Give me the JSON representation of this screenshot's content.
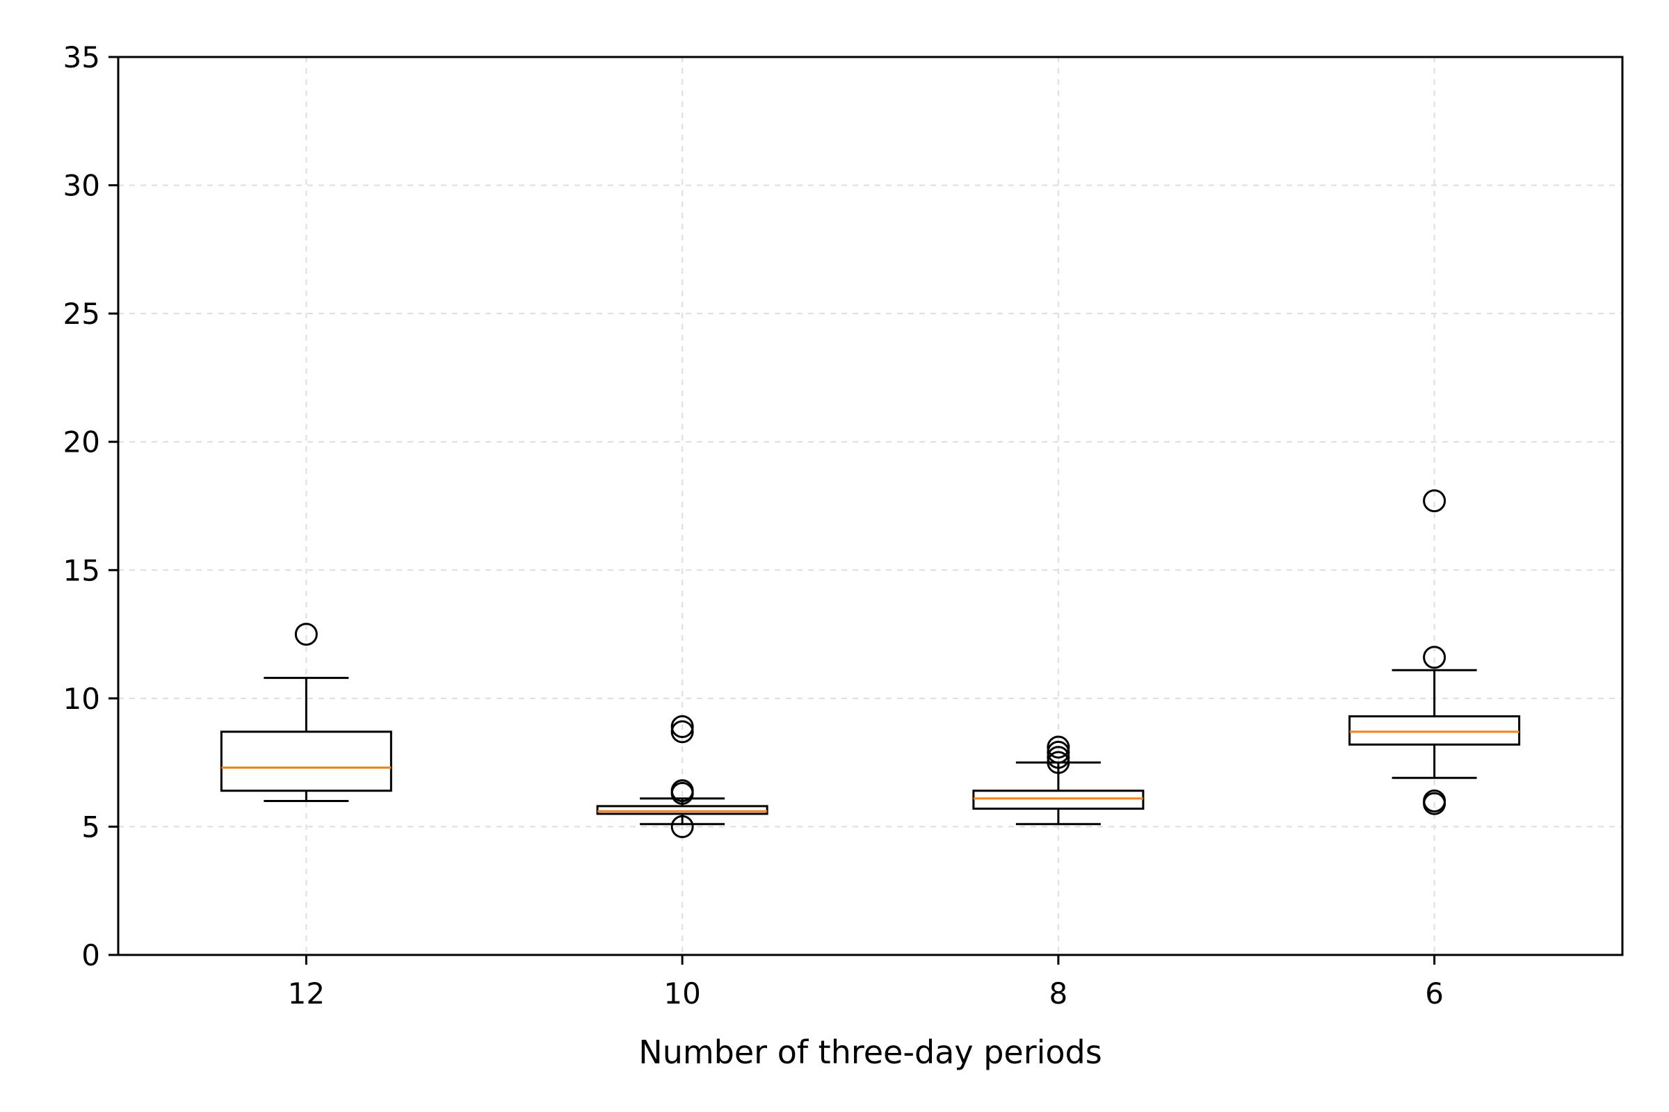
{
  "chart_data": {
    "type": "box",
    "title": "",
    "xlabel": "Number of three-day periods",
    "ylabel": "",
    "ylim": [
      0,
      35
    ],
    "yticks": [
      0,
      5,
      10,
      15,
      20,
      25,
      30,
      35
    ],
    "grid": true,
    "categories": [
      "12",
      "10",
      "8",
      "6"
    ],
    "boxes": [
      {
        "category": "12",
        "whisker_low": 6.0,
        "q1": 6.4,
        "median": 7.3,
        "q3": 8.7,
        "whisker_high": 10.8,
        "outliers": [
          12.5
        ]
      },
      {
        "category": "10",
        "whisker_low": 5.1,
        "q1": 5.5,
        "median": 5.6,
        "q3": 5.8,
        "whisker_high": 6.1,
        "outliers": [
          5.0,
          6.3,
          6.4,
          8.7,
          8.9
        ]
      },
      {
        "category": "8",
        "whisker_low": 5.1,
        "q1": 5.7,
        "median": 6.1,
        "q3": 6.4,
        "whisker_high": 7.5,
        "outliers": [
          7.5,
          7.7,
          7.9,
          8.1
        ]
      },
      {
        "category": "6",
        "whisker_low": 6.9,
        "q1": 8.2,
        "median": 8.7,
        "q3": 9.3,
        "whisker_high": 11.1,
        "outliers": [
          5.9,
          6.0,
          11.6,
          17.7
        ]
      }
    ],
    "colors": {
      "box": "#000000",
      "median": "#ff7f0e",
      "grid": "#dddddd"
    }
  }
}
